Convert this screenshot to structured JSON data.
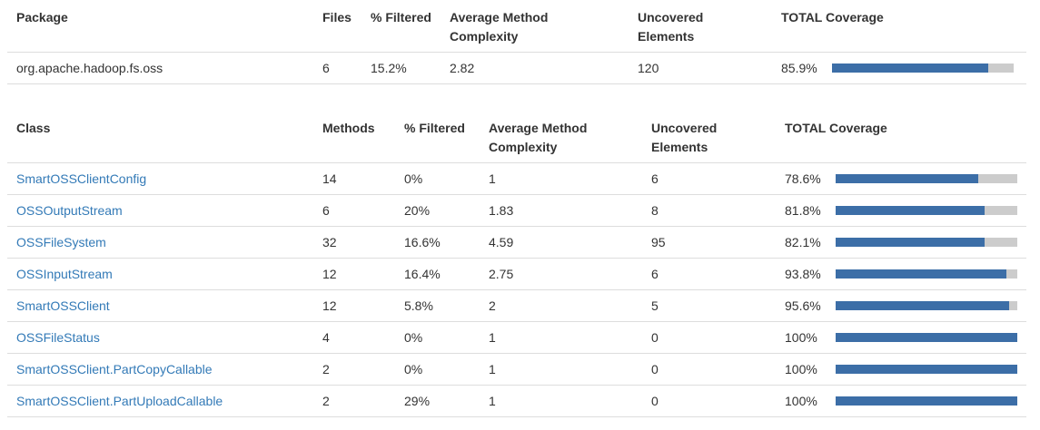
{
  "package_table": {
    "headers": {
      "package": "Package",
      "files": "Files",
      "filtered": "% Filtered",
      "avg_complexity": "Average Method Complexity",
      "uncovered": "Uncovered Elements",
      "total_coverage": "TOTAL Coverage"
    },
    "row": {
      "name": "org.apache.hadoop.fs.oss",
      "files": "6",
      "filtered": "15.2%",
      "avg_complexity": "2.82",
      "uncovered": "120",
      "coverage": "85.9%",
      "coverage_value": 85.9
    }
  },
  "class_table": {
    "headers": {
      "class": "Class",
      "methods": "Methods",
      "filtered": "% Filtered",
      "avg_complexity": "Average Method Complexity",
      "uncovered": "Uncovered Elements",
      "total_coverage": "TOTAL Coverage"
    },
    "rows": [
      {
        "name": "SmartOSSClientConfig",
        "methods": "14",
        "filtered": "0%",
        "avg_complexity": "1",
        "uncovered": "6",
        "coverage": "78.6%",
        "coverage_value": 78.6
      },
      {
        "name": "OSSOutputStream",
        "methods": "6",
        "filtered": "20%",
        "avg_complexity": "1.83",
        "uncovered": "8",
        "coverage": "81.8%",
        "coverage_value": 81.8
      },
      {
        "name": "OSSFileSystem",
        "methods": "32",
        "filtered": "16.6%",
        "avg_complexity": "4.59",
        "uncovered": "95",
        "coverage": "82.1%",
        "coverage_value": 82.1
      },
      {
        "name": "OSSInputStream",
        "methods": "12",
        "filtered": "16.4%",
        "avg_complexity": "2.75",
        "uncovered": "6",
        "coverage": "93.8%",
        "coverage_value": 93.8
      },
      {
        "name": "SmartOSSClient",
        "methods": "12",
        "filtered": "5.8%",
        "avg_complexity": "2",
        "uncovered": "5",
        "coverage": "95.6%",
        "coverage_value": 95.6
      },
      {
        "name": "OSSFileStatus",
        "methods": "4",
        "filtered": "0%",
        "avg_complexity": "1",
        "uncovered": "0",
        "coverage": "100%",
        "coverage_value": 100
      },
      {
        "name": "SmartOSSClient.PartCopyCallable",
        "methods": "2",
        "filtered": "0%",
        "avg_complexity": "1",
        "uncovered": "0",
        "coverage": "100%",
        "coverage_value": 100
      },
      {
        "name": "SmartOSSClient.PartUploadCallable",
        "methods": "2",
        "filtered": "29%",
        "avg_complexity": "1",
        "uncovered": "0",
        "coverage": "100%",
        "coverage_value": 100
      }
    ]
  },
  "colors": {
    "link": "#337ab7",
    "bar_fill": "#3c6ea7",
    "bar_track": "#cccccc",
    "border": "#dddddd"
  }
}
